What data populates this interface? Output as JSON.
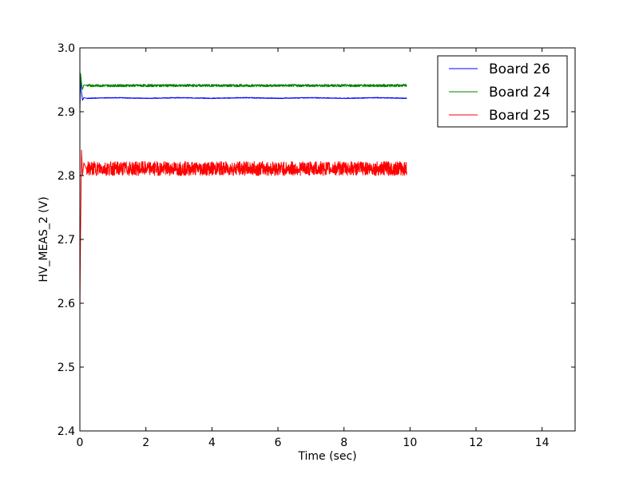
{
  "chart_data": {
    "type": "line",
    "title": "",
    "xlabel": "Time (sec)",
    "ylabel": "HV_MEAS_2 (V)",
    "xlim": [
      0,
      15
    ],
    "ylim": [
      2.4,
      3.0
    ],
    "xticks": [
      0,
      2,
      4,
      6,
      8,
      10,
      12,
      14
    ],
    "xtick_labels": [
      "0",
      "2",
      "4",
      "6",
      "8",
      "10",
      "12",
      "14"
    ],
    "yticks": [
      2.4,
      2.5,
      2.6,
      2.7,
      2.8,
      2.9,
      3.0
    ],
    "ytick_labels": [
      "2.4",
      "2.5",
      "2.6",
      "2.7",
      "2.8",
      "2.9",
      "3.0"
    ],
    "grid": false,
    "legend_position": "top-right",
    "series": [
      {
        "name": "Board 26",
        "color": "#0000ff",
        "x": [
          0.0,
          0.02,
          0.05,
          0.08,
          0.12,
          0.2,
          1,
          2,
          3,
          4,
          5,
          6,
          7,
          8,
          9,
          9.9
        ],
        "y": [
          2.91,
          2.95,
          2.93,
          2.918,
          2.922,
          2.921,
          2.922,
          2.921,
          2.922,
          2.921,
          2.922,
          2.921,
          2.922,
          2.921,
          2.922,
          2.921
        ]
      },
      {
        "name": "Board 24",
        "color": "#008000",
        "x": [
          0.0,
          0.02,
          0.05,
          0.08,
          0.12,
          0.2,
          1,
          2,
          3,
          4,
          5,
          6,
          7,
          8,
          9,
          9.9
        ],
        "y": [
          2.9,
          2.96,
          2.945,
          2.935,
          2.942,
          2.941,
          2.941,
          2.942,
          2.941,
          2.941,
          2.942,
          2.941,
          2.941,
          2.942,
          2.941,
          2.941
        ],
        "approx_range": [
          2.939,
          2.943
        ]
      },
      {
        "name": "Board 25",
        "color": "#ff0000",
        "x": [
          0.0,
          0.02,
          0.05,
          0.08,
          0.12,
          0.2,
          1,
          2,
          3,
          4,
          5,
          6,
          7,
          8,
          9,
          9.9
        ],
        "y": [
          2.59,
          2.71,
          2.84,
          2.8,
          2.82,
          2.81,
          2.81,
          2.81,
          2.81,
          2.81,
          2.81,
          2.81,
          2.81,
          2.81,
          2.81,
          2.81
        ],
        "approx_range": [
          2.8,
          2.822
        ]
      }
    ]
  }
}
